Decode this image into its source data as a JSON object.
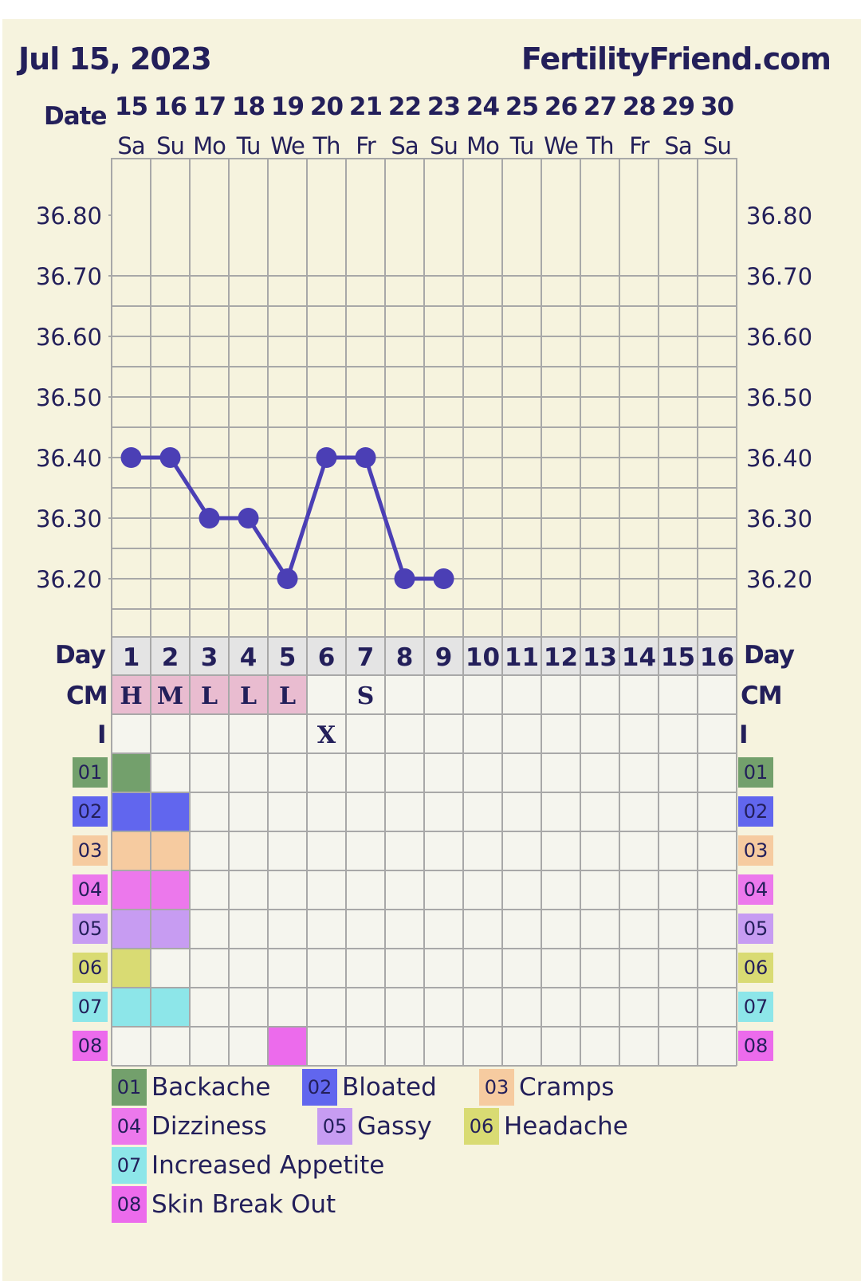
{
  "header": {
    "date": "Jul 15, 2023",
    "site": "FertilityFriend.com"
  },
  "date_label": "Date",
  "dates": [
    "15",
    "16",
    "17",
    "18",
    "19",
    "20",
    "21",
    "22",
    "23",
    "24",
    "25",
    "26",
    "27",
    "28",
    "29",
    "30"
  ],
  "weekdays": [
    "Sa",
    "Su",
    "Mo",
    "Tu",
    "We",
    "Th",
    "Fr",
    "Sa",
    "Su",
    "Mo",
    "Tu",
    "We",
    "Th",
    "Fr",
    "Sa",
    "Su"
  ],
  "days": [
    "1",
    "2",
    "3",
    "4",
    "5",
    "6",
    "7",
    "8",
    "9",
    "10",
    "11",
    "12",
    "13",
    "14",
    "15",
    "16"
  ],
  "row_labels": {
    "day": "Day",
    "cm": "CM",
    "i": "I"
  },
  "cm_values": [
    "H",
    "M",
    "L",
    "L",
    "L",
    "",
    "S",
    "",
    "",
    "",
    "",
    "",
    "",
    "",
    "",
    ""
  ],
  "cm_highlight_color": "#e9bcd0",
  "intercourse": [
    "",
    "",
    "",
    "",
    "",
    "X",
    "",
    "",
    "",
    "",
    "",
    "",
    "",
    "",
    "",
    ""
  ],
  "symptom_codes": [
    "01",
    "02",
    "03",
    "04",
    "05",
    "06",
    "07",
    "08"
  ],
  "symptom_colors": [
    "#73a06c",
    "#6166ee",
    "#f6cba0",
    "#ec78ec",
    "#c79cf2",
    "#d9db73",
    "#8de6e9",
    "#ec6bec"
  ],
  "symptom_grid": [
    [
      1,
      0,
      0,
      0,
      0,
      0,
      0,
      0,
      0,
      0,
      0,
      0,
      0,
      0,
      0,
      0
    ],
    [
      1,
      1,
      0,
      0,
      0,
      0,
      0,
      0,
      0,
      0,
      0,
      0,
      0,
      0,
      0,
      0
    ],
    [
      1,
      1,
      0,
      0,
      0,
      0,
      0,
      0,
      0,
      0,
      0,
      0,
      0,
      0,
      0,
      0
    ],
    [
      1,
      1,
      0,
      0,
      0,
      0,
      0,
      0,
      0,
      0,
      0,
      0,
      0,
      0,
      0,
      0
    ],
    [
      1,
      1,
      0,
      0,
      0,
      0,
      0,
      0,
      0,
      0,
      0,
      0,
      0,
      0,
      0,
      0
    ],
    [
      1,
      0,
      0,
      0,
      0,
      0,
      0,
      0,
      0,
      0,
      0,
      0,
      0,
      0,
      0,
      0
    ],
    [
      1,
      1,
      0,
      0,
      0,
      0,
      0,
      0,
      0,
      0,
      0,
      0,
      0,
      0,
      0,
      0
    ],
    [
      0,
      0,
      0,
      0,
      1,
      0,
      0,
      0,
      0,
      0,
      0,
      0,
      0,
      0,
      0,
      0
    ]
  ],
  "legend": [
    {
      "code": "01",
      "label": "Backache"
    },
    {
      "code": "02",
      "label": "Bloated"
    },
    {
      "code": "03",
      "label": "Cramps"
    },
    {
      "code": "04",
      "label": "Dizziness"
    },
    {
      "code": "05",
      "label": "Gassy"
    },
    {
      "code": "06",
      "label": "Headache"
    },
    {
      "code": "07",
      "label": "Increased Appetite"
    },
    {
      "code": "08",
      "label": "Skin Break Out"
    }
  ],
  "colors": {
    "background": "#f6f3de",
    "line": "#4b3fb5",
    "text": "#231f5a",
    "grid": "#a8a8a8"
  },
  "chart_data": {
    "type": "line",
    "title": "",
    "xlabel": "Day",
    "ylabel": "",
    "x": [
      1,
      2,
      3,
      4,
      5,
      6,
      7,
      8,
      9
    ],
    "y_ticks": [
      "36.80",
      "36.70",
      "36.60",
      "36.50",
      "36.40",
      "36.30",
      "36.20"
    ],
    "ylim": [
      36.1,
      36.9
    ],
    "grid": true,
    "series": [
      {
        "values": [
          36.4,
          36.4,
          36.3,
          36.3,
          36.2,
          36.4,
          36.4,
          36.2,
          36.2
        ]
      }
    ]
  }
}
